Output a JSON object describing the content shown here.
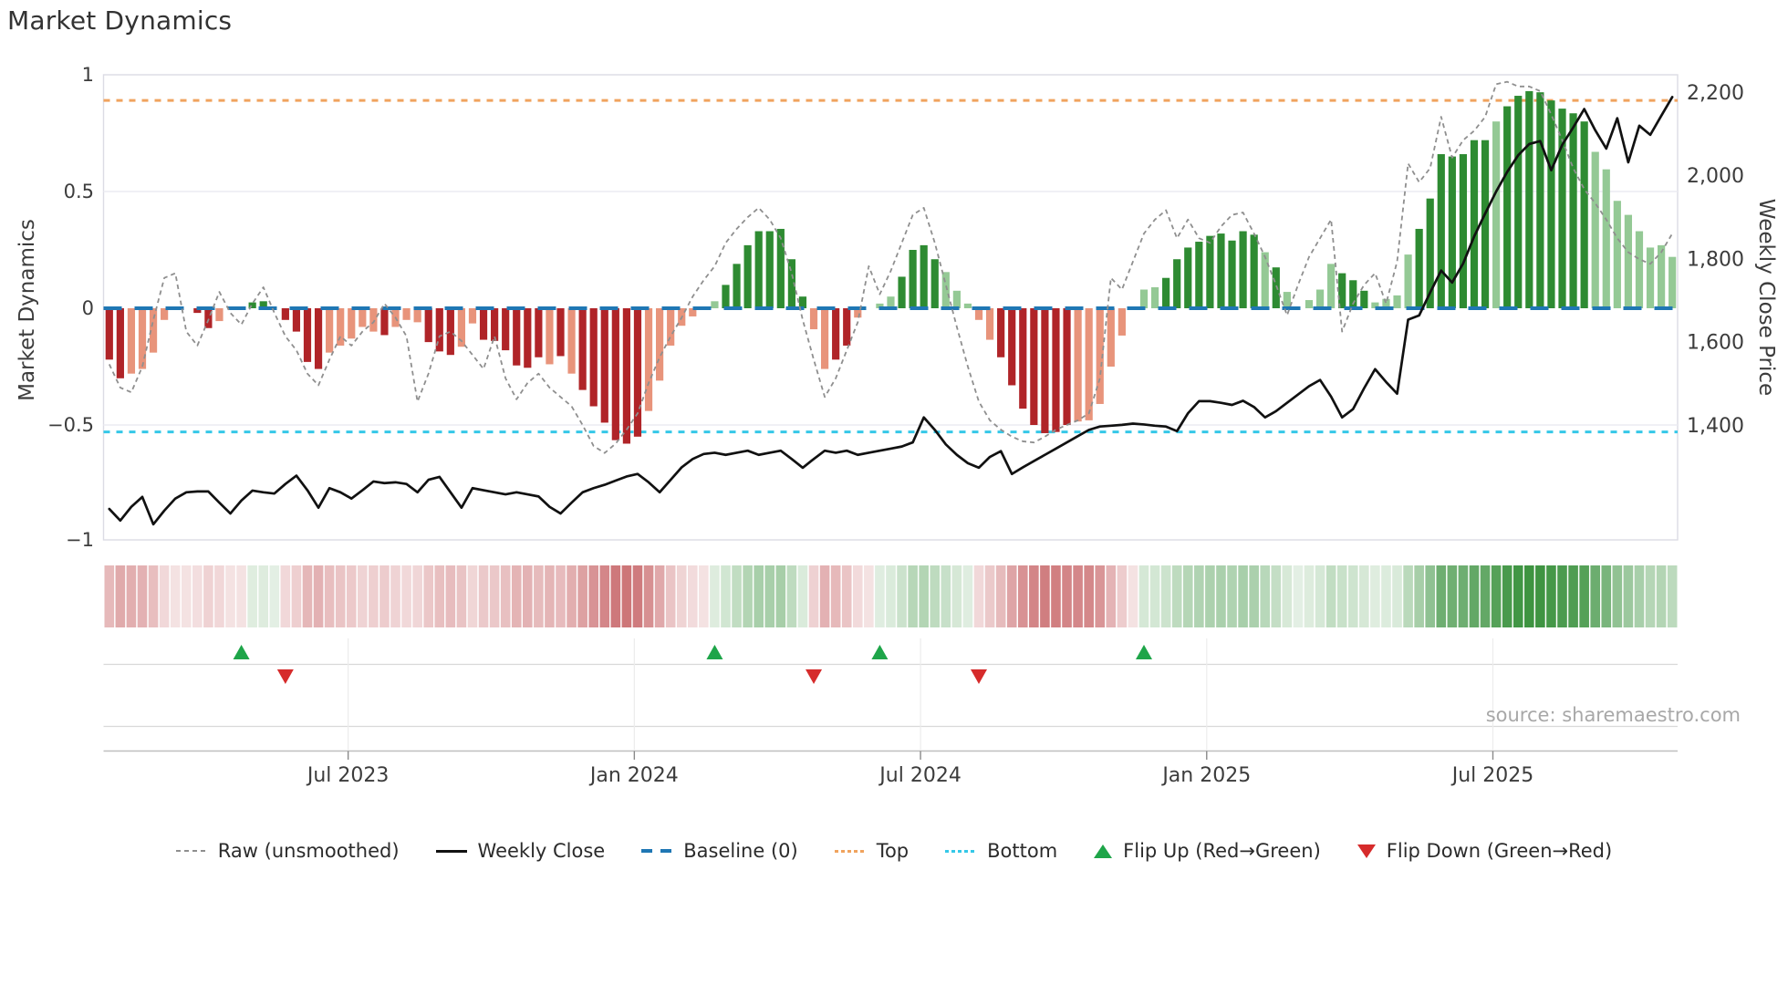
{
  "title": "Market Dynamics",
  "source": "source: sharemaestro.com",
  "left_axis": {
    "label": "Market Dynamics",
    "ticks": [
      {
        "label": "1",
        "v": 1
      },
      {
        "label": "0.5",
        "v": 0.5
      },
      {
        "label": "0",
        "v": 0
      },
      {
        "label": "−0.5",
        "v": -0.5
      },
      {
        "label": "−1",
        "v": -1
      }
    ]
  },
  "right_axis": {
    "label": "Weekly Close Price",
    "ticks": [
      {
        "label": "2,200",
        "p": 2200
      },
      {
        "label": "2,000",
        "p": 2000
      },
      {
        "label": "1,800",
        "p": 1800
      },
      {
        "label": "1,600",
        "p": 1600
      },
      {
        "label": "1,400",
        "p": 1400
      }
    ]
  },
  "x_axis": {
    "tick_labels": [
      "Jul 2023",
      "Jan 2024",
      "Jul 2024",
      "Jan 2025",
      "Jul 2025"
    ],
    "tick_weeks": [
      21.7,
      47.7,
      73.7,
      99.7,
      125.7
    ]
  },
  "legend": [
    {
      "label": "Raw (unsmoothed)",
      "swatch": "gray-dash"
    },
    {
      "label": "Weekly Close",
      "swatch": "black-line"
    },
    {
      "label": "Baseline (0)",
      "swatch": "blue-dash"
    },
    {
      "label": "Top",
      "swatch": "orange-dot"
    },
    {
      "label": "Bottom",
      "swatch": "cyan-dot"
    },
    {
      "label": "Flip Up (Red→Green)",
      "swatch": "up-tri"
    },
    {
      "label": "Flip Down (Green→Red)",
      "swatch": "down-tri"
    }
  ],
  "colors": {
    "bar_dark_red": "#b02428",
    "bar_light_red": "#e8947b",
    "bar_dark_green": "#2e8b32",
    "bar_light_green": "#94c995",
    "baseline": "#1f77b4",
    "top": "#f0a35e",
    "bottom": "#35c8e8",
    "raw": "#8f8f8f",
    "price": "#111111",
    "flip_up": "#1ea549",
    "flip_down": "#d62b2b",
    "grid": "#ececf2",
    "border": "#dcdce4",
    "axis_text": "#3c3c3c",
    "title_text": "#333333",
    "source_text": "#a8a8a8",
    "heat_red_base": "#b02428",
    "heat_green_base": "#2e8b32"
  },
  "chart_data": {
    "type": "bar+line combo with heatmap strip and event markers",
    "n_weeks": 143,
    "left_ylim": [
      -1,
      1
    ],
    "right_ylim": [
      1300,
      2250
    ],
    "reference_lines": {
      "baseline": 0,
      "top": 0.89,
      "bottom": -0.53
    },
    "bar_values": [
      -0.22,
      -0.3,
      -0.28,
      -0.26,
      -0.19,
      -0.05,
      0,
      0,
      -0.02,
      -0.085,
      -0.055,
      0,
      0,
      0.025,
      0.03,
      0,
      -0.05,
      -0.1,
      -0.23,
      -0.26,
      -0.19,
      -0.16,
      -0.13,
      -0.08,
      -0.1,
      -0.115,
      -0.08,
      -0.05,
      -0.06,
      -0.145,
      -0.185,
      -0.2,
      -0.165,
      -0.065,
      -0.135,
      -0.14,
      -0.18,
      -0.245,
      -0.255,
      -0.21,
      -0.24,
      -0.205,
      -0.28,
      -0.35,
      -0.42,
      -0.49,
      -0.565,
      -0.58,
      -0.55,
      -0.44,
      -0.31,
      -0.16,
      -0.075,
      -0.035,
      0,
      0.03,
      0.1,
      0.19,
      0.27,
      0.33,
      0.33,
      0.34,
      0.21,
      0.05,
      -0.09,
      -0.26,
      -0.22,
      -0.16,
      -0.04,
      0,
      0.02,
      0.05,
      0.135,
      0.25,
      0.27,
      0.21,
      0.155,
      0.075,
      0.02,
      -0.05,
      -0.135,
      -0.21,
      -0.33,
      -0.43,
      -0.5,
      -0.535,
      -0.53,
      -0.5,
      -0.485,
      -0.48,
      -0.41,
      -0.25,
      -0.117,
      0,
      0.08,
      0.09,
      0.13,
      0.21,
      0.26,
      0.285,
      0.31,
      0.32,
      0.29,
      0.33,
      0.315,
      0.24,
      0.175,
      0.07,
      0,
      0.035,
      0.08,
      0.19,
      0.15,
      0.12,
      0.075,
      0.025,
      0.04,
      0.055,
      0.23,
      0.34,
      0.47,
      0.66,
      0.65,
      0.66,
      0.72,
      0.72,
      0.8,
      0.865,
      0.91,
      0.93,
      0.925,
      0.89,
      0.855,
      0.835,
      0.8,
      0.67,
      0.595,
      0.46,
      0.4,
      0.33,
      0.26,
      0.27,
      0.22
    ],
    "bar_shades": "ddllllllddlllddlddddllllldllldddllddddddldlddddddllllldlddddddddllddllllddddllllldddddddlllllllldddddddddldllllldddlllldddddddlddddddddllllllllllldd",
    "raw_values": [
      -0.24,
      -0.34,
      -0.36,
      -0.25,
      -0.05,
      0.13,
      0.15,
      -0.1,
      -0.16,
      -0.05,
      0.07,
      -0.02,
      -0.07,
      0.02,
      0.09,
      -0.02,
      -0.12,
      -0.18,
      -0.28,
      -0.33,
      -0.22,
      -0.12,
      -0.16,
      -0.1,
      -0.06,
      0.02,
      -0.04,
      -0.12,
      -0.4,
      -0.28,
      -0.12,
      -0.1,
      -0.14,
      -0.2,
      -0.26,
      -0.12,
      -0.3,
      -0.39,
      -0.32,
      -0.28,
      -0.34,
      -0.38,
      -0.42,
      -0.5,
      -0.59,
      -0.62,
      -0.58,
      -0.52,
      -0.45,
      -0.32,
      -0.21,
      -0.12,
      -0.04,
      0.05,
      0.12,
      0.18,
      0.28,
      0.34,
      0.39,
      0.43,
      0.38,
      0.3,
      0.15,
      -0.05,
      -0.22,
      -0.38,
      -0.3,
      -0.18,
      -0.06,
      0.18,
      0.06,
      0.16,
      0.28,
      0.4,
      0.43,
      0.28,
      0.1,
      -0.08,
      -0.25,
      -0.4,
      -0.48,
      -0.52,
      -0.55,
      -0.57,
      -0.575,
      -0.55,
      -0.52,
      -0.5,
      -0.48,
      -0.45,
      -0.3,
      0.13,
      0.08,
      0.2,
      0.32,
      0.38,
      0.42,
      0.3,
      0.38,
      0.3,
      0.28,
      0.35,
      0.4,
      0.41,
      0.32,
      0.22,
      0.1,
      -0.03,
      0.1,
      0.22,
      0.3,
      0.38,
      -0.1,
      0.02,
      0.1,
      0.15,
      0.02,
      0.2,
      0.62,
      0.54,
      0.6,
      0.82,
      0.645,
      0.72,
      0.76,
      0.82,
      0.96,
      0.97,
      0.95,
      0.95,
      0.93,
      0.83,
      0.72,
      0.6,
      0.51,
      0.45,
      0.38,
      0.3,
      0.24,
      0.21,
      0.19,
      0.24,
      0.32
    ],
    "price_values": [
      1200,
      1172,
      1205,
      1229,
      1163,
      1196,
      1225,
      1240,
      1242,
      1242,
      1215,
      1189,
      1220,
      1244,
      1240,
      1237,
      1260,
      1280,
      1245,
      1203,
      1250,
      1240,
      1225,
      1245,
      1266,
      1262,
      1264,
      1260,
      1240,
      1270,
      1277,
      1240,
      1203,
      1250,
      1245,
      1240,
      1235,
      1240,
      1235,
      1230,
      1205,
      1189,
      1215,
      1240,
      1250,
      1258,
      1268,
      1278,
      1284,
      1264,
      1240,
      1270,
      1300,
      1320,
      1332,
      1335,
      1330,
      1335,
      1340,
      1330,
      1335,
      1340,
      1320,
      1299,
      1320,
      1340,
      1335,
      1340,
      1330,
      1335,
      1340,
      1345,
      1350,
      1360,
      1420,
      1390,
      1355,
      1330,
      1310,
      1299,
      1325,
      1339,
      1284,
      1300,
      1315,
      1330,
      1345,
      1360,
      1375,
      1390,
      1398,
      1400,
      1402,
      1405,
      1403,
      1400,
      1398,
      1387,
      1430,
      1459,
      1459,
      1455,
      1450,
      1460,
      1445,
      1420,
      1435,
      1455,
      1475,
      1495,
      1510,
      1470,
      1420,
      1440,
      1490,
      1536,
      1505,
      1477,
      1655,
      1665,
      1720,
      1773,
      1744,
      1790,
      1855,
      1910,
      1963,
      2010,
      2050,
      2077,
      2084,
      2014,
      2075,
      2117,
      2161,
      2110,
      2066,
      2139,
      2033,
      2121,
      2099,
      2145,
      2190
    ],
    "flip_up_weeks": [
      12,
      55,
      70,
      94
    ],
    "flip_down_weeks": [
      16,
      64,
      79
    ]
  }
}
